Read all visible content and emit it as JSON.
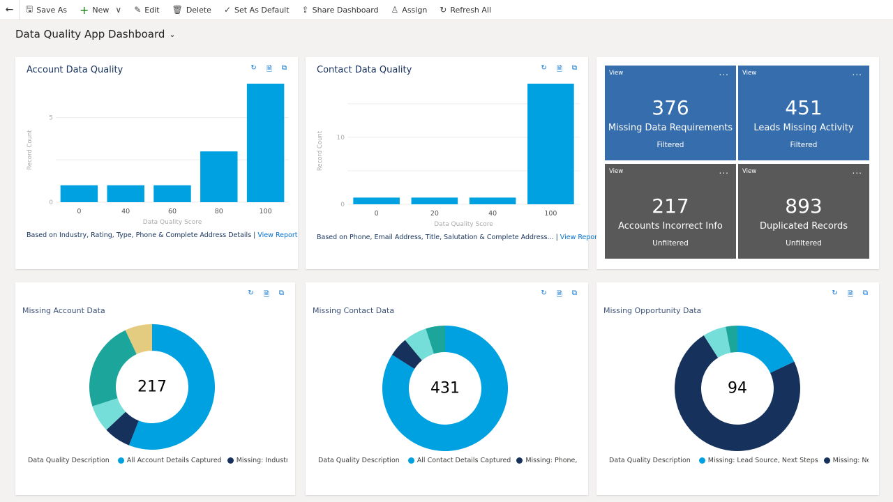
{
  "toolbar": {
    "back": "←",
    "items": [
      {
        "icon": "save-as-icon",
        "glyph": "🖫",
        "label": "Save As"
      },
      {
        "icon": "plus-icon",
        "glyph": "+",
        "label": "New"
      },
      {
        "icon": "chevron-down-icon",
        "glyph": "∨",
        "label": ""
      },
      {
        "icon": "edit-icon",
        "glyph": "✎",
        "label": "Edit"
      },
      {
        "icon": "delete-icon",
        "glyph": "🗑",
        "label": "Delete"
      },
      {
        "icon": "check-icon",
        "glyph": "✓",
        "label": "Set As Default"
      },
      {
        "icon": "share-icon",
        "glyph": "⇪",
        "label": "Share Dashboard"
      },
      {
        "icon": "assign-icon",
        "glyph": "♙",
        "label": "Assign"
      },
      {
        "icon": "refresh-icon",
        "glyph": "↻",
        "label": "Refresh All"
      }
    ]
  },
  "dashboard": {
    "title": "Data Quality App Dashboard",
    "chevron": "⌄"
  },
  "card_icons": {
    "refresh": "↻",
    "report": "🗎",
    "expand": "⧉"
  },
  "colors": {
    "bar": "#00a1e0",
    "blue": "#00a1e0",
    "navy": "#16325c",
    "teal": "#1ca59a",
    "lightteal": "#76ded9",
    "gold": "#e3cc7f",
    "tile_blue": "#366ead",
    "tile_gray": "#595959"
  },
  "tiles": [
    {
      "view": "View",
      "more": "...",
      "value": "376",
      "label": "Missing Data Requirements",
      "status": "Filtered",
      "color": "#366ead"
    },
    {
      "view": "View",
      "more": "...",
      "value": "451",
      "label": "Leads Missing Activity",
      "status": "Filtered",
      "color": "#366ead"
    },
    {
      "view": "View",
      "more": "...",
      "value": "217",
      "label": "Accounts Incorrect Info",
      "status": "Unfiltered",
      "color": "#595959"
    },
    {
      "view": "View",
      "more": "...",
      "value": "893",
      "label": "Duplicated Records",
      "status": "Unfiltered",
      "color": "#595959"
    }
  ],
  "chart_data": [
    {
      "type": "bar",
      "title": "Account Data Quality",
      "xlabel": "Data Quality Score",
      "ylabel": "Record Count",
      "categories": [
        "0",
        "40",
        "60",
        "80",
        "100"
      ],
      "values": [
        1,
        1,
        1,
        3,
        7
      ],
      "ylim": [
        0,
        7
      ],
      "yticks": [
        0,
        5
      ],
      "grid": true,
      "footer": "Based on Industry, Rating, Type, Phone & Complete Address Details | ",
      "link": "View Report"
    },
    {
      "type": "bar",
      "title": "Contact Data Quality",
      "xlabel": "Data Quality Score",
      "ylabel": "Record Count",
      "categories": [
        "0",
        "20",
        "40",
        "100"
      ],
      "values": [
        1,
        1,
        1,
        18
      ],
      "ylim": [
        0,
        18
      ],
      "yticks": [
        0,
        10
      ],
      "grid": true,
      "footer": "Based on Phone, Email Address, Title, Salutation & Complete Address... | ",
      "link": "View Report"
    },
    {
      "type": "pie",
      "donut": true,
      "title": "Missing Account Data",
      "total": "217",
      "legend_title": "Data Quality Description",
      "legend": [
        {
          "name": "All Account Details Captured",
          "color": "#00a1e0"
        },
        {
          "name": "Missing: Industry, Ra",
          "color": "#16325c"
        }
      ],
      "slices": [
        {
          "value": 56,
          "color": "#00a1e0"
        },
        {
          "value": 7,
          "color": "#16325c"
        },
        {
          "value": 7,
          "color": "#76ded9"
        },
        {
          "value": 23,
          "color": "#1ca59a"
        },
        {
          "value": 7,
          "color": "#e3cc7f"
        }
      ]
    },
    {
      "type": "pie",
      "donut": true,
      "title": "Missing Contact Data",
      "total": "431",
      "legend_title": "Data Quality Description",
      "legend": [
        {
          "name": "All Contact Details Captured",
          "color": "#00a1e0"
        },
        {
          "name": "Missing: Phone, Ema",
          "color": "#16325c"
        }
      ],
      "slices": [
        {
          "value": 84,
          "color": "#00a1e0"
        },
        {
          "value": 5,
          "color": "#16325c"
        },
        {
          "value": 6,
          "color": "#76ded9"
        },
        {
          "value": 5,
          "color": "#1ca59a"
        }
      ]
    },
    {
      "type": "pie",
      "donut": true,
      "title": "Missing Opportunity Data",
      "total": "94",
      "legend_title": "Data Quality Description",
      "legend": [
        {
          "name": "Missing: Lead Source, Next Steps",
          "color": "#00a1e0"
        },
        {
          "name": "Missing: Next St",
          "color": "#16325c"
        }
      ],
      "slices": [
        {
          "value": 18,
          "color": "#00a1e0"
        },
        {
          "value": 73,
          "color": "#16325c"
        },
        {
          "value": 6,
          "color": "#76ded9"
        },
        {
          "value": 3,
          "color": "#1ca59a"
        }
      ]
    }
  ]
}
